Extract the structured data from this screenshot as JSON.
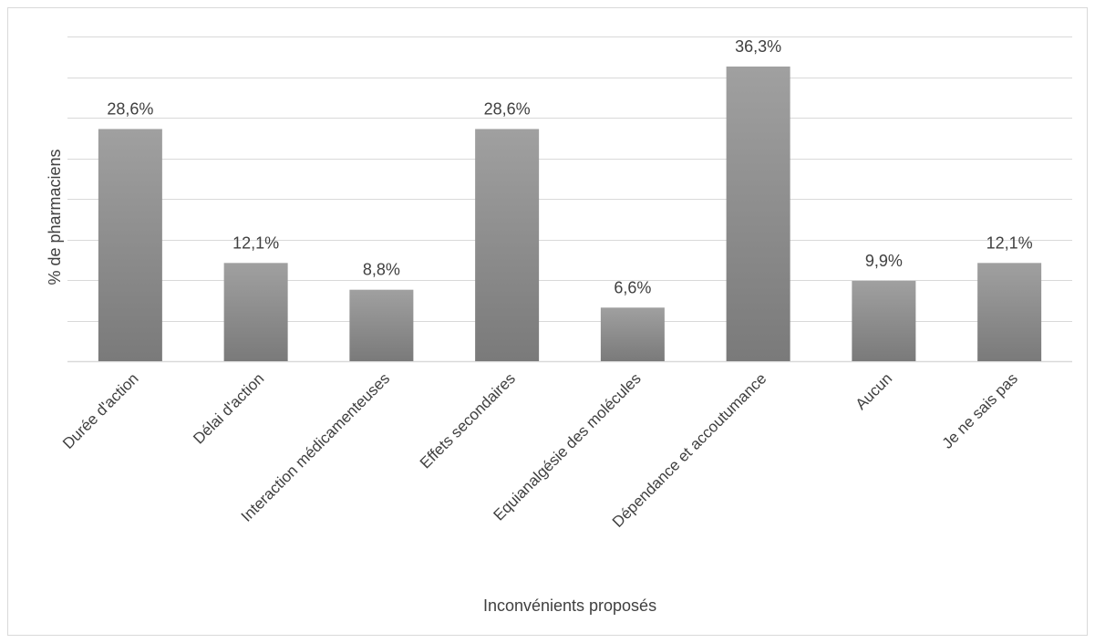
{
  "chart_data": {
    "type": "bar",
    "categories": [
      "Durée d'action",
      "Délai d'action",
      "Interaction médicamenteuses",
      "Effets secondaires",
      "Equianalgésie des molécules",
      "Dépendance et accoutumance",
      "Aucun",
      "Je ne sais pas"
    ],
    "values": [
      28.6,
      12.1,
      8.8,
      28.6,
      6.6,
      36.3,
      9.9,
      12.1
    ],
    "data_labels": [
      "28,6%",
      "12,1%",
      "8,8%",
      "28,6%",
      "6,6%",
      "36,3%",
      "9,9%",
      "12,1%"
    ],
    "xlabel": "Inconvénients proposés",
    "ylabel": "% de pharmaciens",
    "ylim": [
      0,
      40
    ],
    "y_gridline_step": 5,
    "y_tick_labels_shown": false,
    "grid": true,
    "legend": "none",
    "colors": {
      "bar_top": "#a0a0a0",
      "bar_bottom": "#7a7a7a",
      "gridline": "#d9d9d9",
      "text": "#404040"
    }
  }
}
